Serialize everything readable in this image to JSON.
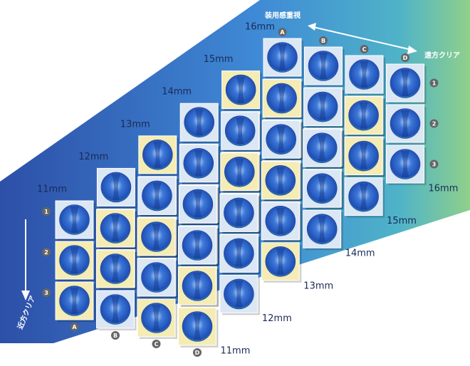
{
  "header": {
    "top_label": "装用感重視",
    "right_label": "遠方クリア",
    "left_label": "近方クリア"
  },
  "layers": [
    {
      "label": "11mm"
    },
    {
      "label": "12mm"
    },
    {
      "label": "13mm"
    },
    {
      "label": "14mm"
    },
    {
      "label": "15mm"
    },
    {
      "label": "16mm"
    }
  ],
  "columns": [
    "A",
    "B",
    "C",
    "D"
  ],
  "rows": [
    "1",
    "2",
    "3"
  ]
}
